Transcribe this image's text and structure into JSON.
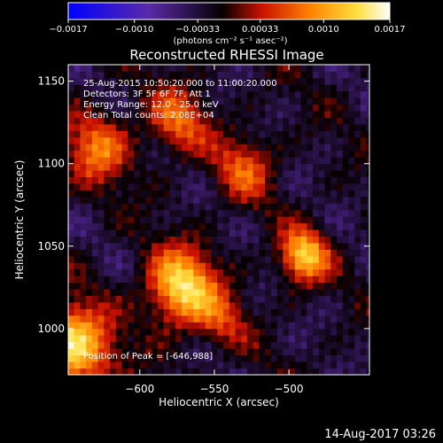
{
  "chart_data": {
    "type": "heatmap",
    "title": "Reconstructed RHESSI Image",
    "xlabel": "Heliocentric X (arcsec)",
    "ylabel": "Heliocentric Y (arcsec)",
    "xlim": [
      -648,
      -446
    ],
    "ylim": [
      972,
      1160
    ],
    "x_ticks": [
      {
        "value": -600,
        "label": "−600"
      },
      {
        "value": -550,
        "label": "−550"
      },
      {
        "value": -500,
        "label": "−500"
      }
    ],
    "y_ticks": [
      {
        "value": 1000,
        "label": "1000"
      },
      {
        "value": 1050,
        "label": "1050"
      },
      {
        "value": 1100,
        "label": "1100"
      },
      {
        "value": 1150,
        "label": "1150"
      }
    ],
    "colorbar": {
      "range": [
        -0.0017,
        0.0017
      ],
      "ticks": [
        {
          "value": -0.0017,
          "label": "−0.0017"
        },
        {
          "value": -0.001,
          "label": "−0.0010"
        },
        {
          "value": -0.00033,
          "label": "−0.00033"
        },
        {
          "value": 0.00033,
          "label": "0.00033"
        },
        {
          "value": 0.001,
          "label": "0.0010"
        },
        {
          "value": 0.0017,
          "label": "0.0017"
        }
      ],
      "unit_label": "(photons cm⁻² s⁻¹ asec⁻²)",
      "colors": [
        "#0000ff",
        "#5a2aa8",
        "#1a0000",
        "#c81000",
        "#ff8000",
        "#ffe040",
        "#ffffff"
      ]
    },
    "annotations": [
      "25-Aug-2015 10:50:20.000 to 11:00:20.000",
      "Detectors: 3F 5F 6F 7F, Att 1",
      "Energy Range: 12.0 - 25.0 keV",
      "Clean     Total counts: 2.08E+04"
    ],
    "peak_label": "Position of Peak = [-646,988]",
    "sources": [
      {
        "x": -646,
        "y": 988,
        "peak": 0.0017,
        "sigma": 18
      },
      {
        "x": -572,
        "y": 1025,
        "peak": 0.00165,
        "sigma": 16
      },
      {
        "x": -490,
        "y": 1044,
        "peak": 0.0015,
        "sigma": 11
      },
      {
        "x": -575,
        "y": 1126,
        "peak": 0.0009,
        "sigma": 14
      },
      {
        "x": -530,
        "y": 1098,
        "peak": 0.0008,
        "sigma": 14
      },
      {
        "x": -628,
        "y": 1110,
        "peak": 0.001,
        "sigma": 15
      },
      {
        "x": -545,
        "y": 1005,
        "peak": 0.0006,
        "sigma": 12
      }
    ]
  },
  "footer": {
    "timestamp": "14-Aug-2017 03:26"
  }
}
